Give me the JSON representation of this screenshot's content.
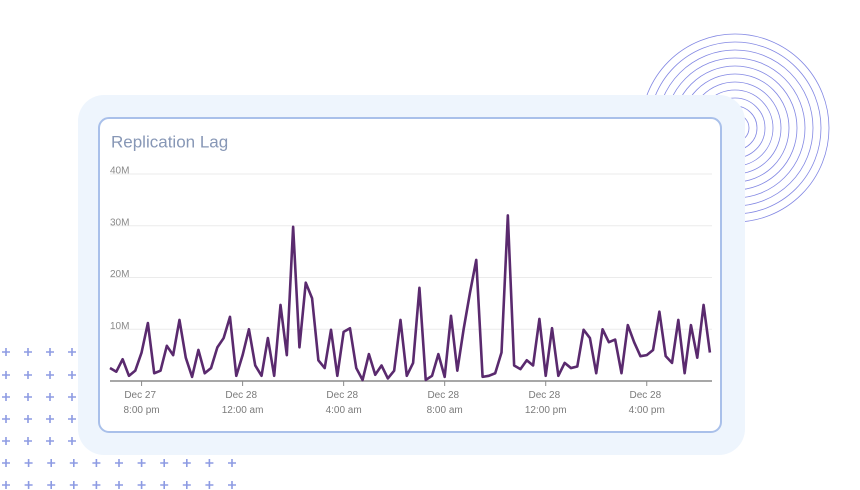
{
  "chart_data": {
    "type": "line",
    "title": "Replication Lag",
    "color": "#5a2a6e",
    "grid": true,
    "ylim": [
      0,
      40000000
    ],
    "yticks": [
      {
        "value": 10000000,
        "label": "10M"
      },
      {
        "value": 20000000,
        "label": "20M"
      },
      {
        "value": 30000000,
        "label": "30M"
      },
      {
        "value": 40000000,
        "label": "40M"
      }
    ],
    "xlim": [
      "Dec 27 6:45 pm",
      "Dec 28 6:35 pm"
    ],
    "xticks": [
      "Dec 27 8:00 pm",
      "Dec 28 12:00 am",
      "Dec 28 4:00 am",
      "Dec 28 8:00 am",
      "Dec 28 12:00 pm",
      "Dec 28 4:00 pm"
    ],
    "x": [
      "Dec 27 6:45 pm",
      "Dec 27 7:00 pm",
      "Dec 27 7:15 pm",
      "Dec 27 7:30 pm",
      "Dec 27 7:45 pm",
      "Dec 27 8:00 pm",
      "Dec 27 8:15 pm",
      "Dec 27 8:30 pm",
      "Dec 27 8:45 pm",
      "Dec 27 9:00 pm",
      "Dec 27 9:15 pm",
      "Dec 27 9:30 pm",
      "Dec 27 9:45 pm",
      "Dec 27 10:00 pm",
      "Dec 27 10:15 pm",
      "Dec 27 10:30 pm",
      "Dec 27 10:45 pm",
      "Dec 27 11:00 pm",
      "Dec 27 11:15 pm",
      "Dec 27 11:30 pm",
      "Dec 27 11:45 pm",
      "Dec 28 12:00 am",
      "Dec 28 12:15 am",
      "Dec 28 12:30 am",
      "Dec 28 12:45 am",
      "Dec 28 1:00 am",
      "Dec 28 1:15 am",
      "Dec 28 1:30 am",
      "Dec 28 1:45 am",
      "Dec 28 2:00 am",
      "Dec 28 2:15 am",
      "Dec 28 2:30 am",
      "Dec 28 2:45 am",
      "Dec 28 3:00 am",
      "Dec 28 3:15 am",
      "Dec 28 3:30 am",
      "Dec 28 3:45 am",
      "Dec 28 4:00 am",
      "Dec 28 4:15 am",
      "Dec 28 4:30 am",
      "Dec 28 4:45 am",
      "Dec 28 5:00 am",
      "Dec 28 5:15 am",
      "Dec 28 5:30 am",
      "Dec 28 5:45 am",
      "Dec 28 6:00 am",
      "Dec 28 6:15 am",
      "Dec 28 6:30 am",
      "Dec 28 6:45 am",
      "Dec 28 7:00 am",
      "Dec 28 7:15 am",
      "Dec 28 7:30 am",
      "Dec 28 7:45 am",
      "Dec 28 8:00 am",
      "Dec 28 8:15 am",
      "Dec 28 8:30 am",
      "Dec 28 8:45 am",
      "Dec 28 9:00 am",
      "Dec 28 9:15 am",
      "Dec 28 9:30 am",
      "Dec 28 9:45 am",
      "Dec 28 10:00 am",
      "Dec 28 10:15 am",
      "Dec 28 10:30 am",
      "Dec 28 10:45 am",
      "Dec 28 11:00 am",
      "Dec 28 11:15 am",
      "Dec 28 11:30 am",
      "Dec 28 11:45 am",
      "Dec 28 12:00 pm",
      "Dec 28 12:15 pm",
      "Dec 28 12:30 pm",
      "Dec 28 12:45 pm",
      "Dec 28 1:00 pm",
      "Dec 28 1:15 pm",
      "Dec 28 1:30 pm",
      "Dec 28 1:45 pm",
      "Dec 28 2:00 pm",
      "Dec 28 2:15 pm",
      "Dec 28 2:30 pm",
      "Dec 28 2:45 pm",
      "Dec 28 3:00 pm",
      "Dec 28 3:15 pm",
      "Dec 28 3:30 pm",
      "Dec 28 3:45 pm",
      "Dec 28 4:00 pm",
      "Dec 28 4:15 pm",
      "Dec 28 4:30 pm",
      "Dec 28 4:45 pm",
      "Dec 28 5:00 pm",
      "Dec 28 5:15 pm",
      "Dec 28 5:30 pm",
      "Dec 28 5:45 pm",
      "Dec 28 6:00 pm",
      "Dec 28 6:15 pm",
      "Dec 28 6:30 pm"
    ],
    "values": [
      2500000,
      1800000,
      4200000,
      1000000,
      2000000,
      5500000,
      11200000,
      1500000,
      2000000,
      6800000,
      5000000,
      11800000,
      4500000,
      800000,
      6000000,
      1500000,
      2500000,
      6500000,
      8300000,
      12400000,
      1000000,
      5000000,
      10000000,
      3000000,
      1000000,
      8300000,
      1000000,
      14700000,
      5000000,
      29800000,
      6500000,
      19000000,
      16000000,
      4000000,
      2500000,
      9900000,
      1000000,
      9500000,
      10200000,
      2500000,
      200000,
      5200000,
      1200000,
      3000000,
      500000,
      2000000,
      11800000,
      1000000,
      3500000,
      18000000,
      200000,
      1000000,
      5200000,
      800000,
      12600000,
      2000000,
      10000000,
      17000000,
      23400000,
      800000,
      1000000,
      1500000,
      5500000,
      32000000,
      3000000,
      2300000,
      4000000,
      3000000,
      12000000,
      1000000,
      10200000,
      1000000,
      3500000,
      2500000,
      2800000,
      9900000,
      8300000,
      1500000,
      10000000,
      7500000,
      8000000,
      1500000,
      10800000,
      7500000,
      4800000,
      5000000,
      6000000,
      13400000,
      4800000,
      3500000,
      11800000,
      1500000,
      10800000,
      4500000,
      14700000,
      5500000
    ]
  }
}
